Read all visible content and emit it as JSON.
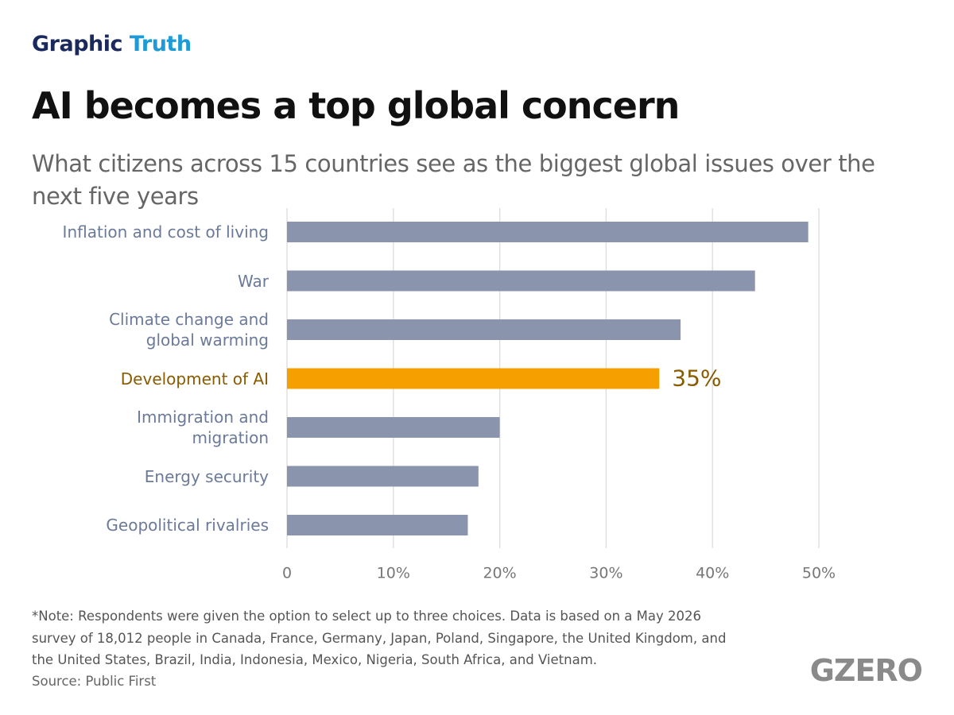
{
  "brand": {
    "first": "Graphic",
    "second": "Truth"
  },
  "logo": "GZERO",
  "note": [
    "*Note: Respondents were given the option to select up to three choices. Data is based on a May 2026",
    "survey of 18,012 people in Canada, France, Germany, Japan, Poland, Singapore, the United Kingdom, and",
    "the United States, Brazil, India, Indonesia, Mexico, Nigeria, South Africa, and Vietnam."
  ],
  "source": "Source: Public First",
  "chart_data": {
    "type": "hbar",
    "title": "AI becomes a top global concern",
    "subtitle": "What citizens across 15 countries see as the biggest global issues over the next five years",
    "categories": [
      "Inflation and cost of living",
      "War",
      "Climate change and\nglobal warming",
      "Development of AI",
      "Immigration and\nmigration",
      "Energy security",
      "Geopolitical rivalries"
    ],
    "values": [
      49,
      44,
      37,
      35,
      20,
      18,
      17
    ],
    "value_labels": [
      null,
      null,
      null,
      "35%",
      null,
      null,
      null
    ],
    "colors": [
      "#8a94ac",
      "#8a94ac",
      "#8a94ac",
      "#f59f00",
      "#8a94ac",
      "#8a94ac",
      "#8a94ac"
    ],
    "label_colors": [
      "#6b7a99",
      "#6b7a99",
      "#6b7a99",
      "#8a5a00",
      "#6b7a99",
      "#6b7a99",
      "#6b7a99"
    ],
    "xlim": [
      0,
      50
    ],
    "xticks": [
      0,
      {
        "value": 10,
        "label": "10%"
      },
      {
        "value": 20,
        "label": "20%"
      },
      {
        "value": 30,
        "label": "30%"
      },
      {
        "value": 40,
        "label": "40%"
      },
      {
        "value": 50,
        "label": "50%"
      }
    ],
    "grid": true
  }
}
